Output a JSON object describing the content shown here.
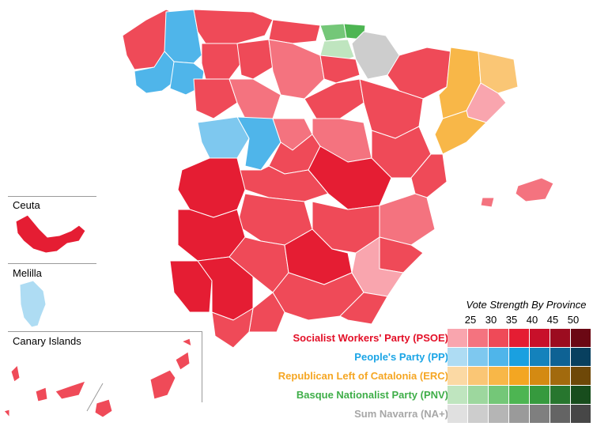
{
  "insets": {
    "ceuta": "Ceuta",
    "melilla": "Melilla",
    "canary": "Canary Islands"
  },
  "legend": {
    "title": "Vote Strength By Province",
    "ticks": [
      "25",
      "30",
      "35",
      "40",
      "45",
      "50"
    ],
    "parties": [
      {
        "name": "Socialist Workers' Party (PSOE)",
        "color": "#e30f27",
        "swatches": [
          "#f9a5ae",
          "#f4737f",
          "#ef4a58",
          "#e51d33",
          "#c8102a",
          "#9c0c20",
          "#6b0814"
        ]
      },
      {
        "name": "People's Party (PP)",
        "color": "#1ba5e6",
        "swatches": [
          "#aedcf3",
          "#7ec8ef",
          "#4fb5ea",
          "#1aa0e0",
          "#1482bc",
          "#0e6294",
          "#08405f"
        ]
      },
      {
        "name": "Republican Left of Catalonia (ERC)",
        "color": "#f5a623",
        "swatches": [
          "#fbd9a4",
          "#fac675",
          "#f8b748",
          "#f3a622",
          "#d48a12",
          "#a26a0d",
          "#6e4808"
        ]
      },
      {
        "name": "Basque Nationalist Party (PNV)",
        "color": "#3fae49",
        "swatches": [
          "#bfe5bf",
          "#9dd79e",
          "#74c778",
          "#4db552",
          "#369a3e",
          "#27762e",
          "#184d1d"
        ]
      },
      {
        "name": "Sum Navarra (NA+)",
        "color": "#a7a7a7",
        "swatches": [
          "#e0e0e0",
          "#cdcdcd",
          "#b5b5b5",
          "#9a9a9a",
          "#7f7f7f",
          "#646464",
          "#474747"
        ]
      }
    ]
  }
}
